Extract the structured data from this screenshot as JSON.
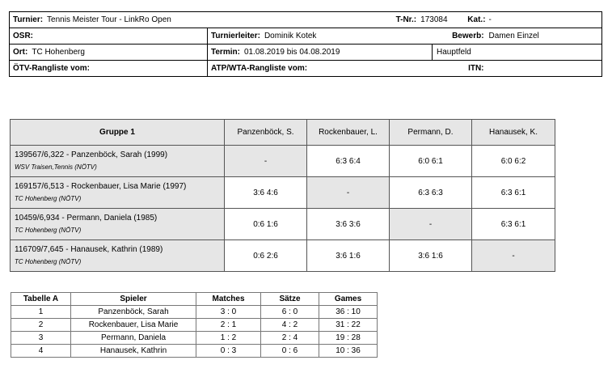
{
  "header": {
    "turnier_label": "Turnier:",
    "turnier_value": "Tennis Meister Tour - LinkRo Open",
    "tnr_label": "T-Nr.:",
    "tnr_value": "173084",
    "kat_label": "Kat.:",
    "kat_value": "-",
    "osr_label": "OSR:",
    "turnierleiter_label": "Turnierleiter:",
    "turnierleiter_value": "Dominik Kotek",
    "bewerb_label": "Bewerb:",
    "bewerb_value": "Damen Einzel",
    "ort_label": "Ort:",
    "ort_value": "TC Hohenberg",
    "termin_label": "Termin:",
    "termin_value": "01.08.2019 bis 04.08.2019",
    "feld_value": "Hauptfeld",
    "oetv_label": "ÖTV-Rangliste vom:",
    "atp_label": "ATP/WTA-Rangliste vom:",
    "itn_label": "ITN:"
  },
  "group": {
    "title": "Gruppe 1",
    "columns": [
      "Panzenböck, S.",
      "Rockenbauer, L.",
      "Permann, D.",
      "Hanausek, K."
    ],
    "rows": [
      {
        "name": "139567/6,322 - Panzenböck, Sarah (1999)",
        "club": "WSV Traisen,Tennis (NÖTV)",
        "results": [
          "-",
          "6:3 6:4",
          "6:0 6:1",
          "6:0 6:2"
        ]
      },
      {
        "name": "169157/6,513 - Rockenbauer, Lisa Marie (1997)",
        "club": "TC Hohenberg (NÖTV)",
        "results": [
          "3:6 4:6",
          "-",
          "6:3 6:3",
          "6:3 6:1"
        ]
      },
      {
        "name": "10459/6,934 - Permann, Daniela (1985)",
        "club": "TC Hohenberg (NÖTV)",
        "results": [
          "0:6 1:6",
          "3:6 3:6",
          "-",
          "6:3 6:1"
        ]
      },
      {
        "name": "116709/7,645 - Hanausek, Kathrin (1989)",
        "club": "TC Hohenberg (NÖTV)",
        "results": [
          "0:6 2:6",
          "3:6 1:6",
          "3:6 1:6",
          "-"
        ]
      }
    ]
  },
  "standings": {
    "headers": [
      "Tabelle A",
      "Spieler",
      "Matches",
      "Sätze",
      "Games"
    ],
    "rows": [
      [
        "1",
        "Panzenböck, Sarah",
        "3 : 0",
        "6 : 0",
        "36 : 10"
      ],
      [
        "2",
        "Rockenbauer, Lisa Marie",
        "2 : 1",
        "4 : 2",
        "31 : 22"
      ],
      [
        "3",
        "Permann, Daniela",
        "1 : 2",
        "2 : 4",
        "19 : 28"
      ],
      [
        "4",
        "Hanausek, Kathrin",
        "0 : 3",
        "0 : 6",
        "10 : 36"
      ]
    ]
  }
}
